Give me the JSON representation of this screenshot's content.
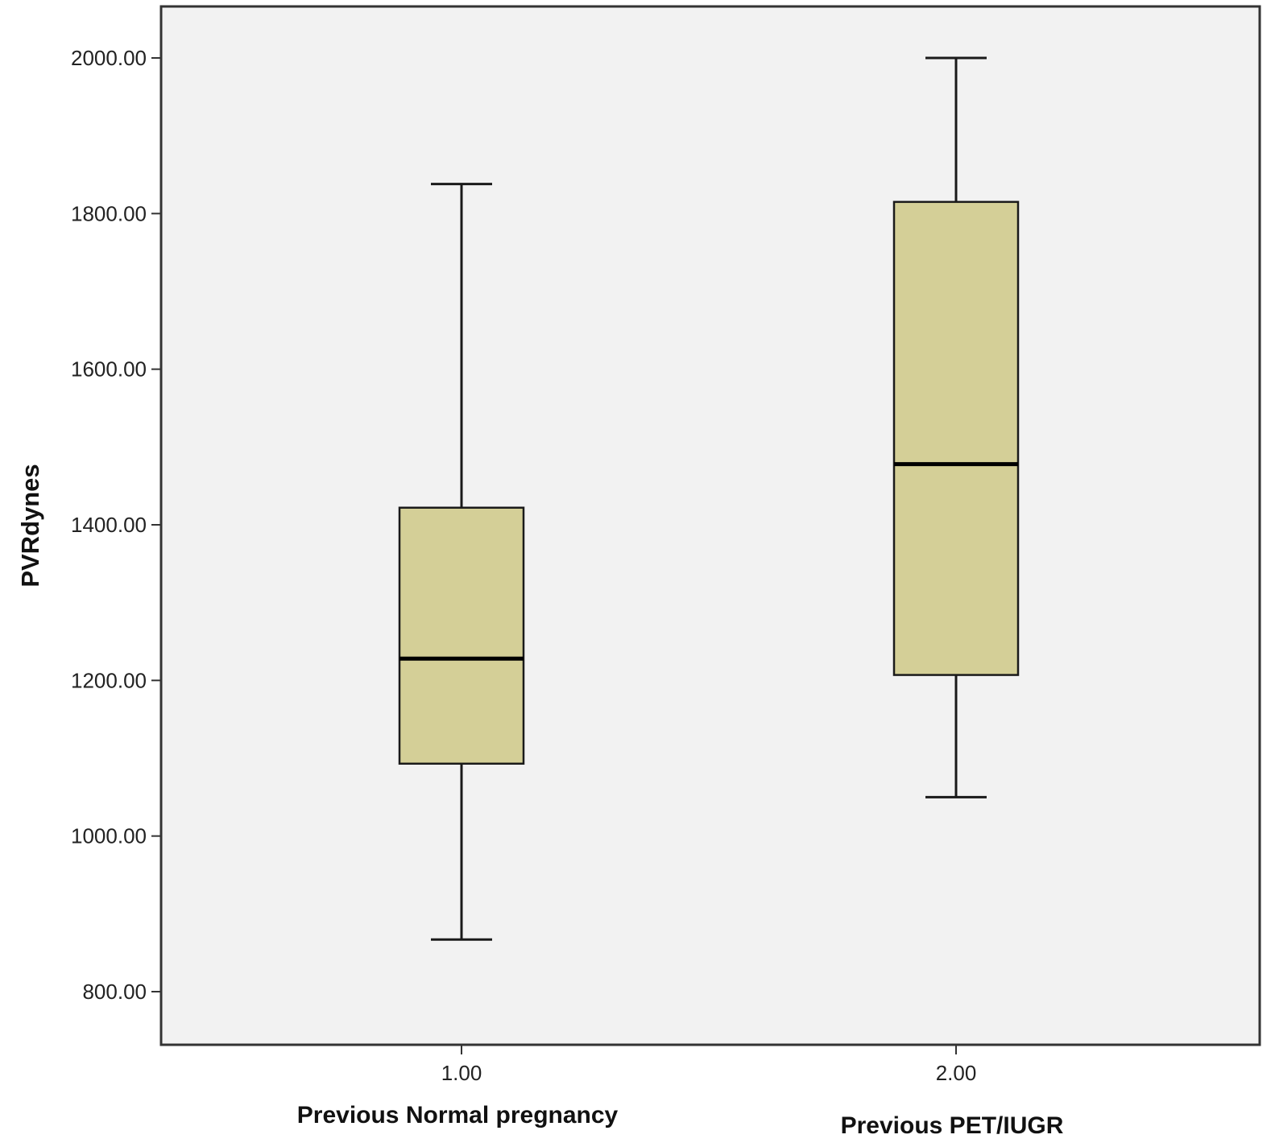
{
  "chart_data": {
    "type": "boxplot",
    "ylabel": "PVRdynes",
    "ylim": [
      765,
      2065
    ],
    "yticks": [
      800,
      1000,
      1200,
      1400,
      1600,
      1800,
      2000
    ],
    "ytick_labels": [
      "800.00",
      "1000.00",
      "1200.00",
      "1400.00",
      "1600.00",
      "1800.00",
      "2000.00"
    ],
    "grid": false,
    "colors": {
      "box_fill": "#d4cf97",
      "plot_background": "#f2f2f2",
      "line": "#1a1a1a"
    },
    "categories": [
      {
        "tick_label": "1.00",
        "label": "Previous Normal pregnancy",
        "whisker_low": 867,
        "q1": 1093,
        "median": 1228,
        "q3": 1422,
        "whisker_high": 1838
      },
      {
        "tick_label": "2.00",
        "label": "Previous PET/IUGR",
        "whisker_low": 1050,
        "q1": 1207,
        "median": 1478,
        "q3": 1815,
        "whisker_high": 2000
      }
    ]
  }
}
